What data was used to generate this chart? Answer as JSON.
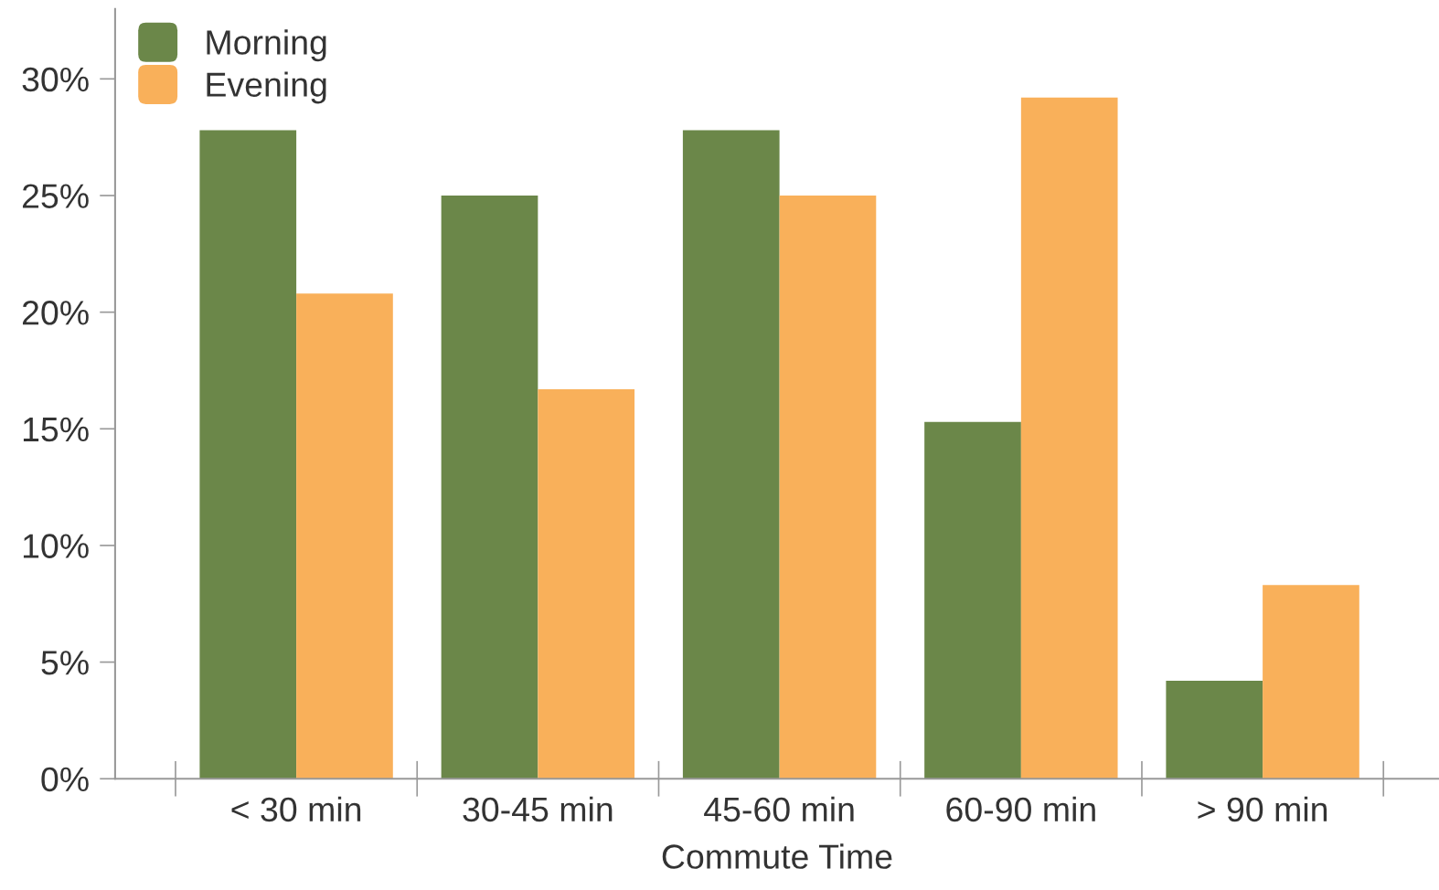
{
  "chart_data": {
    "type": "bar",
    "xlabel": "Commute Time",
    "categories": [
      "< 30 min",
      "30-45 min",
      "45-60 min",
      "60-90 min",
      "> 90 min"
    ],
    "series": [
      {
        "name": "Morning",
        "color": "#6b8749",
        "values": [
          27.8,
          25.0,
          27.8,
          15.3,
          4.2
        ]
      },
      {
        "name": "Evening",
        "color": "#f9b05a",
        "values": [
          20.8,
          16.7,
          25.0,
          29.2,
          8.3
        ]
      }
    ],
    "ylim": [
      0,
      33
    ],
    "yticks": [
      {
        "value": 0,
        "label": "0%"
      },
      {
        "value": 5,
        "label": "5%"
      },
      {
        "value": 10,
        "label": "10%"
      },
      {
        "value": 15,
        "label": "15%"
      },
      {
        "value": 20,
        "label": "20%"
      },
      {
        "value": 25,
        "label": "25%"
      },
      {
        "value": 30,
        "label": "30%"
      }
    ],
    "grid": false,
    "legend": "top left"
  }
}
